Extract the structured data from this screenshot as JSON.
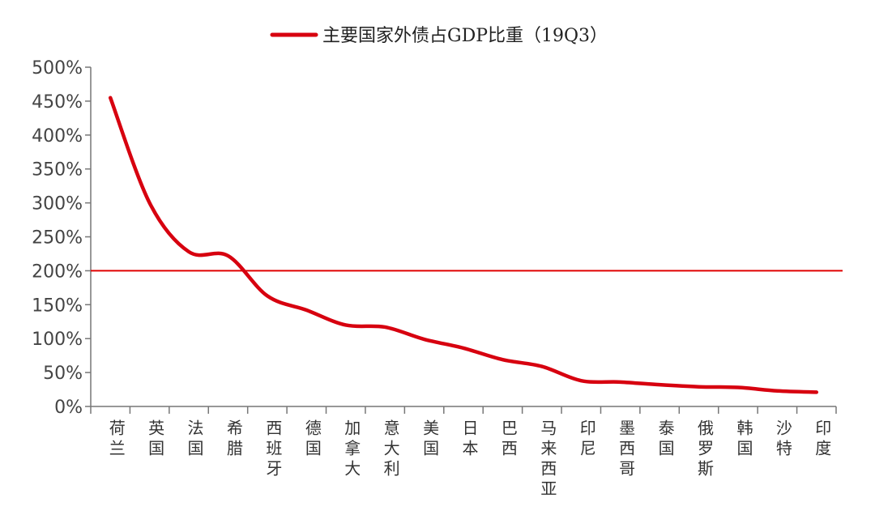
{
  "chart_data": {
    "type": "line",
    "title": "",
    "xlabel": "",
    "ylabel": "",
    "ylim": [
      0,
      500
    ],
    "y_ticks": [
      "0%",
      "50%",
      "100%",
      "150%",
      "200%",
      "250%",
      "300%",
      "350%",
      "400%",
      "450%",
      "500%"
    ],
    "categories": [
      "荷兰",
      "英国",
      "法国",
      "希腊",
      "西班牙",
      "德国",
      "加拿大",
      "意大利",
      "美国",
      "日本",
      "巴西",
      "马来西亚",
      "印尼",
      "墨西哥",
      "泰国",
      "俄罗斯",
      "韩国",
      "沙特",
      "印度"
    ],
    "series": [
      {
        "name": "主要国家外债占GDP比重（19Q3）",
        "values": [
          455,
          300,
          228,
          222,
          163,
          142,
          120,
          117,
          99,
          86,
          69,
          59,
          38,
          36,
          32,
          29,
          28,
          23,
          21
        ]
      }
    ],
    "reference_line": {
      "value": 200
    },
    "grid": false,
    "legend": "top-center",
    "colors": {
      "series": "#d7000f",
      "reference": "#e00000",
      "axis": "#777777"
    }
  }
}
